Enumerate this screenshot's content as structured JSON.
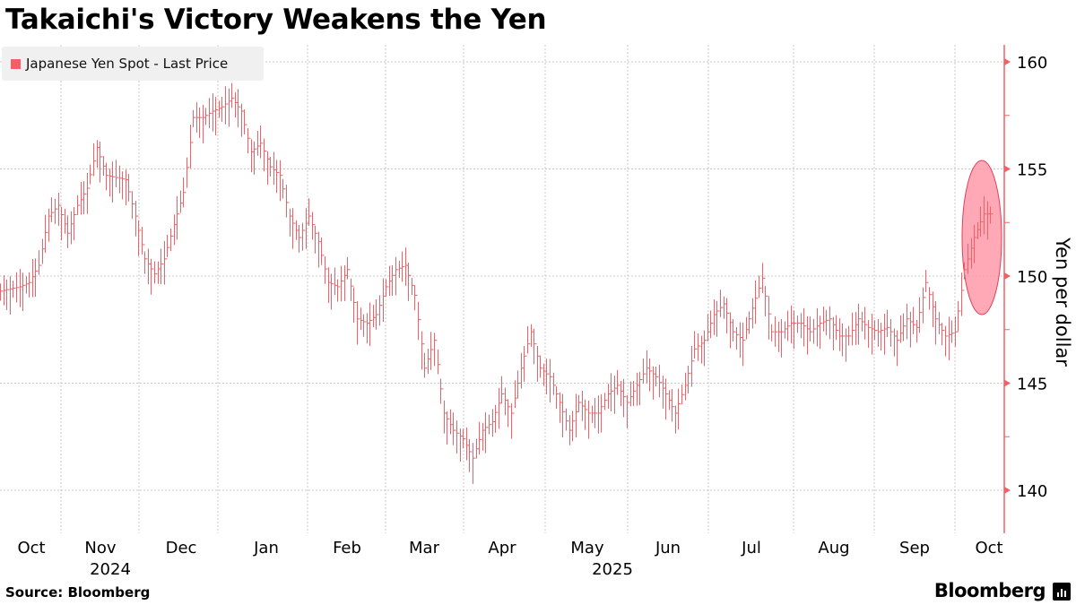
{
  "chart_data": {
    "type": "bar",
    "title": "Takaichi's Victory Weakens the Yen",
    "legend": [
      {
        "label": "Japanese Yen Spot - Last Price",
        "color": "#f06066"
      }
    ],
    "ylabel": "Yen per dollar",
    "ylim": [
      138,
      161
    ],
    "yticks": [
      140,
      145,
      150,
      155,
      160
    ],
    "xticks": [
      "Oct",
      "Nov",
      "Dec",
      "Jan",
      "Feb",
      "Mar",
      "Apr",
      "May",
      "Jun",
      "Jul",
      "Aug",
      "Sep",
      "Oct"
    ],
    "years": [
      "2024",
      "2025"
    ],
    "grid": true,
    "legend_position": "top-left",
    "annotation": "highlight ellipse around latest bars",
    "close": [
      149.3,
      149.4,
      149.5,
      149.7,
      150.5,
      152.8,
      153.3,
      152,
      153.3,
      154.1,
      156,
      154.7,
      154.6,
      154.5,
      152.8,
      150.8,
      150.1,
      150.8,
      152.4,
      153.9,
      157.4,
      157.4,
      157.7,
      157.9,
      158.3,
      157.7,
      155.8,
      156.2,
      155.1,
      154.7,
      152.8,
      151.8,
      152.8,
      151.6,
      149.7,
      149.5,
      150.3,
      148,
      147.8,
      148.2,
      149.5,
      150.3,
      150.5,
      149.1,
      145.7,
      147,
      143.6,
      142.8,
      142.4,
      141.5,
      142.8,
      143.2,
      144.5,
      143.6,
      145.7,
      147.4,
      145.7,
      145.3,
      144.1,
      142.8,
      144.1,
      143.6,
      143.6,
      144.5,
      144.9,
      144.1,
      144.9,
      145.7,
      145.3,
      144.5,
      143.6,
      144.9,
      146.6,
      147,
      148.2,
      148.7,
      147.4,
      147,
      148.5,
      149.9,
      147.4,
      147.4,
      147.8,
      147.8,
      147.4,
      147.8,
      148,
      147.2,
      147.2,
      148,
      147.6,
      147.4,
      147.6,
      147,
      148,
      147.6,
      149.7,
      148,
      147.2,
      147.4,
      150.3,
      151.8,
      152.9
    ]
  },
  "source": "Source: Bloomberg",
  "brand": "Bloomberg",
  "colors": {
    "series": "#f06066",
    "highlight": "#ff9aaa",
    "axis": "#f06066"
  }
}
